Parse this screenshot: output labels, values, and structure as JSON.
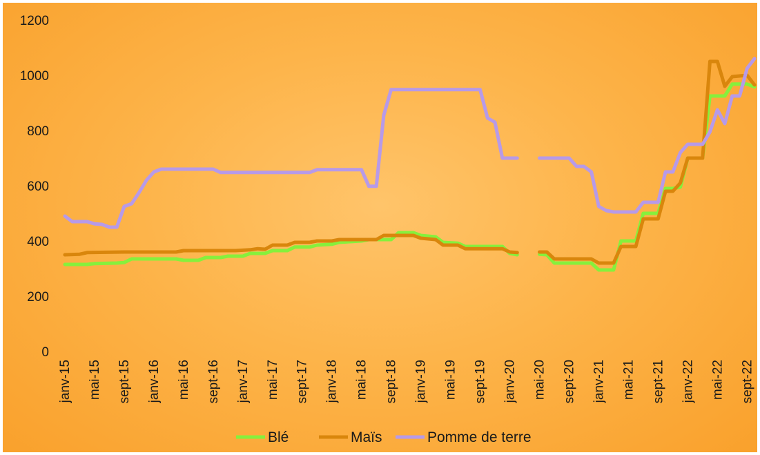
{
  "chart_data": {
    "type": "line",
    "title": "",
    "xlabel": "",
    "ylabel": "",
    "ylim": [
      0,
      1200
    ],
    "yticks": [
      0,
      200,
      400,
      600,
      800,
      1000,
      1200
    ],
    "grid": false,
    "legend_position": "bottom",
    "x_tick_labels": [
      "janv-15",
      "mai-15",
      "sept-15",
      "janv-16",
      "mai-16",
      "sept-16",
      "janv-17",
      "mai-17",
      "sept-17",
      "janv-18",
      "mai-18",
      "sept-18",
      "janv-19",
      "mai-19",
      "sept-19",
      "janv-20",
      "mai-20",
      "sept-20",
      "janv-21",
      "mai-21",
      "sept-21",
      "janv-22",
      "mai-22",
      "sept-22"
    ],
    "series": [
      {
        "name": "Blé",
        "color": "#86f03c",
        "points": [
          {
            "x": "2015-01",
            "y": 315
          },
          {
            "x": "2015-04",
            "y": 315
          },
          {
            "x": "2015-05",
            "y": 318
          },
          {
            "x": "2015-08",
            "y": 320
          },
          {
            "x": "2015-09",
            "y": 322
          },
          {
            "x": "2015-10",
            "y": 335
          },
          {
            "x": "2016-04",
            "y": 335
          },
          {
            "x": "2016-05",
            "y": 330
          },
          {
            "x": "2016-07",
            "y": 330
          },
          {
            "x": "2016-08",
            "y": 340
          },
          {
            "x": "2016-10",
            "y": 340
          },
          {
            "x": "2016-11",
            "y": 345
          },
          {
            "x": "2017-01",
            "y": 345
          },
          {
            "x": "2017-02",
            "y": 355
          },
          {
            "x": "2017-04",
            "y": 355
          },
          {
            "x": "2017-05",
            "y": 365
          },
          {
            "x": "2017-07",
            "y": 365
          },
          {
            "x": "2017-08",
            "y": 378
          },
          {
            "x": "2017-10",
            "y": 378
          },
          {
            "x": "2017-11",
            "y": 385
          },
          {
            "x": "2018-01",
            "y": 388
          },
          {
            "x": "2018-02",
            "y": 395
          },
          {
            "x": "2018-05",
            "y": 400
          },
          {
            "x": "2018-06",
            "y": 405
          },
          {
            "x": "2018-09",
            "y": 405
          },
          {
            "x": "2018-10",
            "y": 430
          },
          {
            "x": "2018-12",
            "y": 430
          },
          {
            "x": "2019-01",
            "y": 420
          },
          {
            "x": "2019-03",
            "y": 415
          },
          {
            "x": "2019-04",
            "y": 395
          },
          {
            "x": "2019-06",
            "y": 392
          },
          {
            "x": "2019-07",
            "y": 380
          },
          {
            "x": "2019-12",
            "y": 380
          },
          {
            "x": "2020-01",
            "y": 355
          },
          {
            "x": "2020-02",
            "y": 350
          },
          null,
          {
            "x": "2020-05",
            "y": 352
          },
          {
            "x": "2020-06",
            "y": 350
          },
          {
            "x": "2020-07",
            "y": 320
          },
          {
            "x": "2020-12",
            "y": 320
          },
          {
            "x": "2021-01",
            "y": 295
          },
          {
            "x": "2021-03",
            "y": 295
          },
          {
            "x": "2021-04",
            "y": 400
          },
          {
            "x": "2021-06",
            "y": 400
          },
          {
            "x": "2021-07",
            "y": 500
          },
          {
            "x": "2021-09",
            "y": 500
          },
          {
            "x": "2021-10",
            "y": 590
          },
          {
            "x": "2021-11",
            "y": 590
          },
          {
            "x": "2021-12",
            "y": 595
          },
          {
            "x": "2022-01",
            "y": 700
          },
          {
            "x": "2022-03",
            "y": 700
          },
          {
            "x": "2022-04",
            "y": 925
          },
          {
            "x": "2022-06",
            "y": 925
          },
          {
            "x": "2022-07",
            "y": 968
          },
          {
            "x": "2022-09",
            "y": 968
          },
          {
            "x": "2022-10",
            "y": 958
          }
        ]
      },
      {
        "name": "Maïs",
        "color": "#d9860c",
        "points": [
          {
            "x": "2015-01",
            "y": 350
          },
          {
            "x": "2015-03",
            "y": 352
          },
          {
            "x": "2015-04",
            "y": 358
          },
          {
            "x": "2015-09",
            "y": 360
          },
          {
            "x": "2016-04",
            "y": 360
          },
          {
            "x": "2016-05",
            "y": 365
          },
          {
            "x": "2016-12",
            "y": 365
          },
          {
            "x": "2017-02",
            "y": 368
          },
          {
            "x": "2017-03",
            "y": 372
          },
          {
            "x": "2017-04",
            "y": 370
          },
          {
            "x": "2017-05",
            "y": 385
          },
          {
            "x": "2017-07",
            "y": 385
          },
          {
            "x": "2017-08",
            "y": 395
          },
          {
            "x": "2017-10",
            "y": 395
          },
          {
            "x": "2017-11",
            "y": 400
          },
          {
            "x": "2018-01",
            "y": 400
          },
          {
            "x": "2018-02",
            "y": 405
          },
          {
            "x": "2018-07",
            "y": 405
          },
          {
            "x": "2018-08",
            "y": 420
          },
          {
            "x": "2018-12",
            "y": 420
          },
          {
            "x": "2019-01",
            "y": 410
          },
          {
            "x": "2019-03",
            "y": 405
          },
          {
            "x": "2019-04",
            "y": 385
          },
          {
            "x": "2019-06",
            "y": 385
          },
          {
            "x": "2019-07",
            "y": 372
          },
          {
            "x": "2019-12",
            "y": 372
          },
          {
            "x": "2020-01",
            "y": 360
          },
          {
            "x": "2020-02",
            "y": 358
          },
          null,
          {
            "x": "2020-05",
            "y": 360
          },
          {
            "x": "2020-06",
            "y": 360
          },
          {
            "x": "2020-07",
            "y": 335
          },
          {
            "x": "2020-12",
            "y": 335
          },
          {
            "x": "2021-01",
            "y": 320
          },
          {
            "x": "2021-03",
            "y": 320
          },
          {
            "x": "2021-04",
            "y": 380
          },
          {
            "x": "2021-06",
            "y": 380
          },
          {
            "x": "2021-07",
            "y": 480
          },
          {
            "x": "2021-09",
            "y": 480
          },
          {
            "x": "2021-10",
            "y": 580
          },
          {
            "x": "2021-11",
            "y": 580
          },
          {
            "x": "2021-12",
            "y": 610
          },
          {
            "x": "2022-01",
            "y": 700
          },
          {
            "x": "2022-03",
            "y": 700
          },
          {
            "x": "2022-04",
            "y": 1050
          },
          {
            "x": "2022-05",
            "y": 1050
          },
          {
            "x": "2022-06",
            "y": 960
          },
          {
            "x": "2022-07",
            "y": 995
          },
          {
            "x": "2022-09",
            "y": 1000
          },
          {
            "x": "2022-10",
            "y": 965
          }
        ]
      },
      {
        "name": "Pomme de terre",
        "color": "#b79ae8",
        "points": [
          {
            "x": "2015-01",
            "y": 490
          },
          {
            "x": "2015-02",
            "y": 470
          },
          {
            "x": "2015-04",
            "y": 470
          },
          {
            "x": "2015-05",
            "y": 462
          },
          {
            "x": "2015-06",
            "y": 460
          },
          {
            "x": "2015-07",
            "y": 450
          },
          {
            "x": "2015-08",
            "y": 450
          },
          {
            "x": "2015-09",
            "y": 525
          },
          {
            "x": "2015-10",
            "y": 535
          },
          {
            "x": "2015-11",
            "y": 575
          },
          {
            "x": "2015-12",
            "y": 620
          },
          {
            "x": "2016-01",
            "y": 650
          },
          {
            "x": "2016-02",
            "y": 660
          },
          {
            "x": "2016-09",
            "y": 660
          },
          {
            "x": "2016-10",
            "y": 648
          },
          {
            "x": "2017-10",
            "y": 648
          },
          {
            "x": "2017-11",
            "y": 658
          },
          {
            "x": "2018-05",
            "y": 658
          },
          {
            "x": "2018-06",
            "y": 598
          },
          {
            "x": "2018-07",
            "y": 598
          },
          {
            "x": "2018-08",
            "y": 855
          },
          {
            "x": "2018-09",
            "y": 948
          },
          {
            "x": "2019-09",
            "y": 948
          },
          {
            "x": "2019-10",
            "y": 845
          },
          {
            "x": "2019-11",
            "y": 830
          },
          {
            "x": "2019-12",
            "y": 700
          },
          {
            "x": "2020-02",
            "y": 700
          },
          null,
          {
            "x": "2020-05",
            "y": 700
          },
          {
            "x": "2020-09",
            "y": 700
          },
          {
            "x": "2020-10",
            "y": 670
          },
          {
            "x": "2020-11",
            "y": 670
          },
          {
            "x": "2020-12",
            "y": 650
          },
          {
            "x": "2021-01",
            "y": 525
          },
          {
            "x": "2021-02",
            "y": 510
          },
          {
            "x": "2021-03",
            "y": 505
          },
          {
            "x": "2021-06",
            "y": 505
          },
          {
            "x": "2021-07",
            "y": 540
          },
          {
            "x": "2021-09",
            "y": 540
          },
          {
            "x": "2021-10",
            "y": 650
          },
          {
            "x": "2021-11",
            "y": 650
          },
          {
            "x": "2021-12",
            "y": 720
          },
          {
            "x": "2022-01",
            "y": 750
          },
          {
            "x": "2022-03",
            "y": 750
          },
          {
            "x": "2022-04",
            "y": 795
          },
          {
            "x": "2022-05",
            "y": 875
          },
          {
            "x": "2022-06",
            "y": 825
          },
          {
            "x": "2022-07",
            "y": 925
          },
          {
            "x": "2022-08",
            "y": 925
          },
          {
            "x": "2022-09",
            "y": 1025
          },
          {
            "x": "2022-10",
            "y": 1060
          }
        ]
      }
    ]
  }
}
